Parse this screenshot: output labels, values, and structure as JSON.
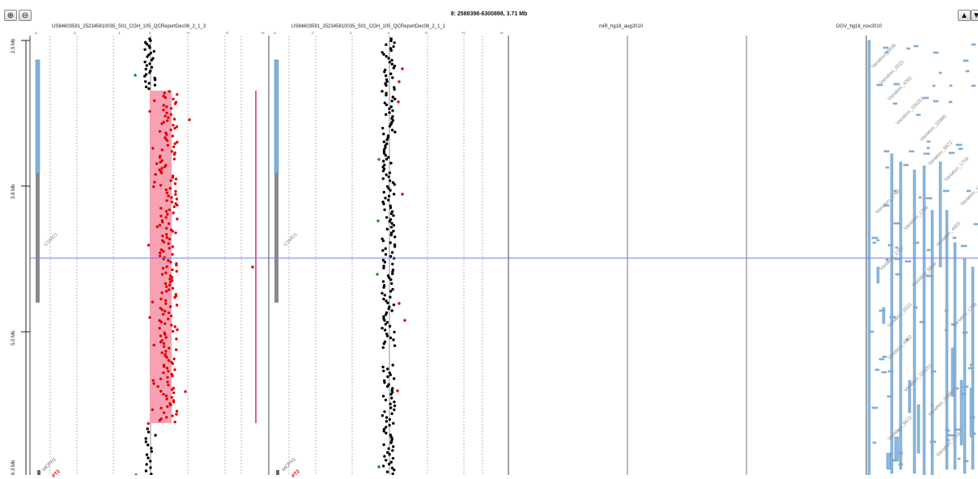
{
  "toolbar": {
    "zoom_in_icon": "zoom-in-icon",
    "zoom_out_icon": "zoom-out-icon",
    "scroll_up_icon": "triangle-up-icon",
    "scroll_down_icon": "triangle-down-icon"
  },
  "header": {
    "region_title": "8: 2588398-6300898, 3.71 Mb"
  },
  "tracks": [
    {
      "name": "US84603591_252345810035_S01_CGH_105_QCReportDec08_2_1_3"
    },
    {
      "name": "US84603591_252345810035_S01_CGH_105_QCReportDec08_2_1_1"
    },
    {
      "name": "miR_hg18_aug2010"
    },
    {
      "name": "DGV_hg18_nov2010"
    }
  ],
  "axis_ticks": [
    "-4",
    "-3",
    "-2",
    "-1",
    "0",
    "+1",
    "+2",
    "+3",
    "+4"
  ],
  "y_axis": {
    "labels": [
      "2.5 Mb",
      "3.8 Mb",
      "5.0 Mb",
      "6.3 Mb"
    ],
    "values_mb": [
      2.5,
      3.8,
      5.0,
      6.3
    ]
  },
  "genes": {
    "csmd1": "CSMD1",
    "mcph1": "MCPH1",
    "angpt2": "PT2"
  },
  "dgv_labels": [
    "Variation_6638",
    "Variation_0221",
    "Variation_4262",
    "Variation_100251",
    "Variation_32880",
    "Variation_9672",
    "Variation_1759",
    "Variation_1760",
    "Variation_1756",
    "Variation_4855",
    "Variation_1757"
  ],
  "colors": {
    "gain_region": "#f7a1b3",
    "gain_points": "#e10000",
    "normal_points": "#000000",
    "loss_points": "#1a8a1a",
    "cursor_line": "#6f78ff",
    "cytoband_blue": "#7fb3dc",
    "cytoband_gray": "#8a8a8a",
    "dgv_bar": "#8fb9dd"
  }
}
